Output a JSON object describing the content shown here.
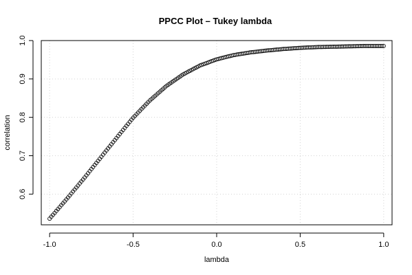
{
  "chart_data": {
    "type": "scatter",
    "title": "PPCC Plot – Tukey lambda",
    "xlabel": "lambda",
    "ylabel": "correlation",
    "xlim": [
      -1.05,
      1.05
    ],
    "ylim": [
      0.52,
      1.0
    ],
    "xticks": [
      -1.0,
      -0.5,
      0.0,
      0.5,
      1.0
    ],
    "xtick_labels": [
      "-1.0",
      "-0.5",
      "0.0",
      "0.5",
      "1.0"
    ],
    "yticks": [
      0.6,
      0.7,
      0.8,
      0.9,
      1.0
    ],
    "ytick_labels": [
      "0.6",
      "0.7",
      "0.8",
      "0.9",
      "1.0"
    ],
    "grid": true,
    "marker": "open-circle",
    "series": [
      {
        "x": [
          -1.0,
          -0.9,
          -0.8,
          -0.7,
          -0.6,
          -0.5,
          -0.4,
          -0.3,
          -0.2,
          -0.1,
          0.0,
          0.1,
          0.2,
          0.3,
          0.4,
          0.5,
          0.6,
          0.7,
          0.8,
          0.9,
          1.0
        ],
        "y": [
          0.536,
          0.586,
          0.638,
          0.692,
          0.746,
          0.799,
          0.844,
          0.882,
          0.912,
          0.935,
          0.951,
          0.962,
          0.969,
          0.974,
          0.978,
          0.981,
          0.983,
          0.984,
          0.985,
          0.986,
          0.986
        ]
      }
    ]
  }
}
